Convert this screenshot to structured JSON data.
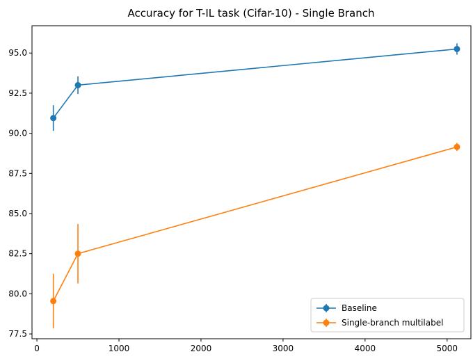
{
  "chart_data": {
    "type": "line",
    "title": "Accuracy for T-IL task (Cifar-10) - Single Branch",
    "xlabel": "",
    "ylabel": "",
    "xlim": [
      -60,
      5290
    ],
    "ylim": [
      77.2,
      96.7
    ],
    "xticks": [
      0,
      1000,
      2000,
      3000,
      4000,
      5000
    ],
    "xtick_labels": [
      "0",
      "1000",
      "2000",
      "3000",
      "4000",
      "5000"
    ],
    "yticks": [
      77.5,
      80.0,
      82.5,
      85.0,
      87.5,
      90.0,
      92.5,
      95.0
    ],
    "ytick_labels": [
      "77.5",
      "80.0",
      "82.5",
      "85.0",
      "87.5",
      "90.0",
      "92.5",
      "95.0"
    ],
    "grid": false,
    "legend_position": "lower-right",
    "x": [
      200,
      500,
      5120
    ],
    "series": [
      {
        "name": "Baseline",
        "color": "#1f77b4",
        "values": [
          90.95,
          93.0,
          95.25
        ],
        "errors": [
          0.8,
          0.55,
          0.35
        ]
      },
      {
        "name": "Single-branch multilabel",
        "color": "#ff7f0e",
        "values": [
          79.55,
          82.5,
          89.15
        ],
        "errors": [
          1.7,
          1.85,
          0.25
        ]
      }
    ]
  }
}
